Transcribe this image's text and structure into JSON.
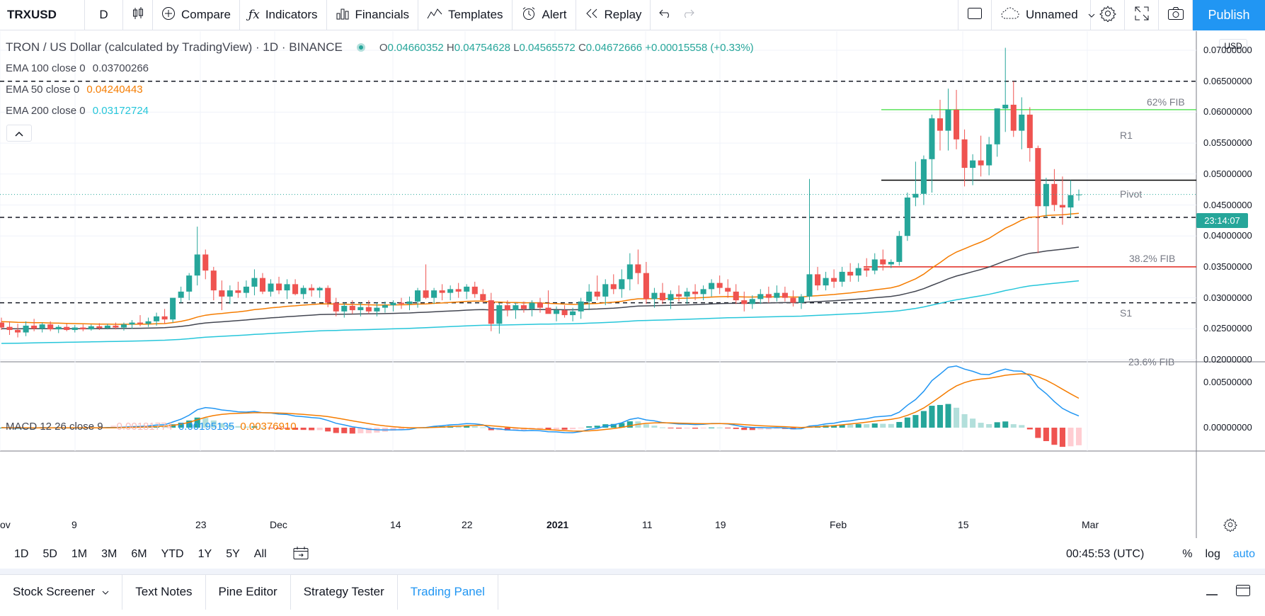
{
  "toolbar": {
    "symbol": "TRXUSD",
    "interval": "D",
    "compare": "Compare",
    "indicators": "Indicators",
    "financials": "Financials",
    "templates": "Templates",
    "alert": "Alert",
    "replay": "Replay",
    "layout_name": "Unnamed",
    "publish": "Publish"
  },
  "legend": {
    "title": "TRON / US Dollar (calculated by TradingView) · 1D · BINANCE",
    "o": "0.04660352",
    "h": "0.04754628",
    "l": "0.04565572",
    "c": "0.04672666",
    "change": "+0.00015558 (+0.33%)",
    "ema100_label": "EMA 100 close 0",
    "ema100_value": "0.03700266",
    "ema50_label": "EMA 50 close 0",
    "ema50_value": "0.04240443",
    "ema200_label": "EMA 200 close 0",
    "ema200_value": "0.03172724",
    "macd_label": "MACD 12 26 close 9",
    "macd_hist": "−0.00181774",
    "macd_line": "0.00195135",
    "macd_signal": "0.00376910"
  },
  "price_axis": {
    "currency": "USD",
    "labels": [
      "0.07000000",
      "0.06500000",
      "0.06000000",
      "0.05500000",
      "0.05000000",
      "0.04500000",
      "0.04000000",
      "0.03500000",
      "0.03000000",
      "0.02500000",
      "0.02000000"
    ],
    "macd_labels": [
      "0.00500000",
      "0.00000000"
    ],
    "countdown": "23:14:07"
  },
  "annotations": {
    "fib62": "62% FIB",
    "r1": "R1",
    "pivot": "Pivot",
    "fib382": "38.2% FIB",
    "s1": "S1",
    "fib236": "23.6% FIB"
  },
  "time_axis": [
    "ov",
    "9",
    "23",
    "Dec",
    "14",
    "22",
    "2021",
    "11",
    "19",
    "Feb",
    "15",
    "Mar"
  ],
  "ranges": [
    "1D",
    "5D",
    "1M",
    "3M",
    "6M",
    "YTD",
    "1Y",
    "5Y",
    "All"
  ],
  "clock": "00:45:53 (UTC)",
  "scale": {
    "percent": "%",
    "log": "log",
    "auto": "auto"
  },
  "tabs": [
    "Stock Screener",
    "Text Notes",
    "Pine Editor",
    "Strategy Tester",
    "Trading Panel"
  ],
  "colors": {
    "up": "#26a69a",
    "down": "#ef5350",
    "ema50": "#f57c00",
    "ema100": "#434651",
    "ema200": "#26c6da",
    "accent": "#2196f3"
  },
  "chart_data": {
    "type": "candlestick",
    "y_range": [
      0.02,
      0.07
    ],
    "candles": [
      {
        "o": 0.026,
        "h": 0.0268,
        "l": 0.0248,
        "c": 0.0252
      },
      {
        "o": 0.0253,
        "h": 0.0262,
        "l": 0.024,
        "c": 0.0248
      },
      {
        "o": 0.0248,
        "h": 0.0258,
        "l": 0.0236,
        "c": 0.0244
      },
      {
        "o": 0.0244,
        "h": 0.0262,
        "l": 0.0238,
        "c": 0.0255
      },
      {
        "o": 0.0255,
        "h": 0.0266,
        "l": 0.0246,
        "c": 0.025
      },
      {
        "o": 0.025,
        "h": 0.026,
        "l": 0.0244,
        "c": 0.0257
      },
      {
        "o": 0.0257,
        "h": 0.0262,
        "l": 0.0246,
        "c": 0.0249
      },
      {
        "o": 0.0249,
        "h": 0.0256,
        "l": 0.0243,
        "c": 0.0253
      },
      {
        "o": 0.0253,
        "h": 0.0258,
        "l": 0.0246,
        "c": 0.0248
      },
      {
        "o": 0.0248,
        "h": 0.0256,
        "l": 0.0244,
        "c": 0.0252
      },
      {
        "o": 0.0252,
        "h": 0.0257,
        "l": 0.0246,
        "c": 0.0249
      },
      {
        "o": 0.0249,
        "h": 0.0257,
        "l": 0.0247,
        "c": 0.0254
      },
      {
        "o": 0.0254,
        "h": 0.0259,
        "l": 0.0248,
        "c": 0.0251
      },
      {
        "o": 0.0251,
        "h": 0.0258,
        "l": 0.0249,
        "c": 0.0255
      },
      {
        "o": 0.0255,
        "h": 0.026,
        "l": 0.0249,
        "c": 0.0252
      },
      {
        "o": 0.0252,
        "h": 0.026,
        "l": 0.0247,
        "c": 0.0257
      },
      {
        "o": 0.0257,
        "h": 0.0264,
        "l": 0.025,
        "c": 0.026
      },
      {
        "o": 0.026,
        "h": 0.0272,
        "l": 0.0254,
        "c": 0.0258
      },
      {
        "o": 0.0258,
        "h": 0.0268,
        "l": 0.0253,
        "c": 0.0262
      },
      {
        "o": 0.0262,
        "h": 0.0276,
        "l": 0.0255,
        "c": 0.027
      },
      {
        "o": 0.027,
        "h": 0.0282,
        "l": 0.0258,
        "c": 0.0265
      },
      {
        "o": 0.0265,
        "h": 0.0296,
        "l": 0.026,
        "c": 0.03
      },
      {
        "o": 0.03,
        "h": 0.0318,
        "l": 0.0292,
        "c": 0.031
      },
      {
        "o": 0.031,
        "h": 0.034,
        "l": 0.0296,
        "c": 0.0336
      },
      {
        "o": 0.0336,
        "h": 0.0415,
        "l": 0.032,
        "c": 0.037
      },
      {
        "o": 0.037,
        "h": 0.0378,
        "l": 0.033,
        "c": 0.0344
      },
      {
        "o": 0.0344,
        "h": 0.035,
        "l": 0.0296,
        "c": 0.0312
      },
      {
        "o": 0.0312,
        "h": 0.0328,
        "l": 0.028,
        "c": 0.0302
      },
      {
        "o": 0.0302,
        "h": 0.032,
        "l": 0.029,
        "c": 0.0312
      },
      {
        "o": 0.0312,
        "h": 0.0326,
        "l": 0.03,
        "c": 0.0308
      },
      {
        "o": 0.0308,
        "h": 0.0328,
        "l": 0.03,
        "c": 0.0318
      },
      {
        "o": 0.0318,
        "h": 0.0346,
        "l": 0.0304,
        "c": 0.0332
      },
      {
        "o": 0.0332,
        "h": 0.034,
        "l": 0.0306,
        "c": 0.031
      },
      {
        "o": 0.031,
        "h": 0.033,
        "l": 0.0302,
        "c": 0.0323
      },
      {
        "o": 0.0323,
        "h": 0.0334,
        "l": 0.0306,
        "c": 0.0312
      },
      {
        "o": 0.0312,
        "h": 0.033,
        "l": 0.0298,
        "c": 0.0322
      },
      {
        "o": 0.0322,
        "h": 0.033,
        "l": 0.0304,
        "c": 0.0306
      },
      {
        "o": 0.0306,
        "h": 0.032,
        "l": 0.0298,
        "c": 0.0316
      },
      {
        "o": 0.0316,
        "h": 0.0322,
        "l": 0.0302,
        "c": 0.0312
      },
      {
        "o": 0.0312,
        "h": 0.0318,
        "l": 0.03,
        "c": 0.0316
      },
      {
        "o": 0.0316,
        "h": 0.032,
        "l": 0.0285,
        "c": 0.0292
      },
      {
        "o": 0.0292,
        "h": 0.03,
        "l": 0.027,
        "c": 0.0278
      },
      {
        "o": 0.0278,
        "h": 0.0292,
        "l": 0.0268,
        "c": 0.0287
      },
      {
        "o": 0.0287,
        "h": 0.0296,
        "l": 0.0274,
        "c": 0.028
      },
      {
        "o": 0.028,
        "h": 0.0292,
        "l": 0.027,
        "c": 0.0285
      },
      {
        "o": 0.0285,
        "h": 0.0296,
        "l": 0.0274,
        "c": 0.0278
      },
      {
        "o": 0.0278,
        "h": 0.0292,
        "l": 0.027,
        "c": 0.0284
      },
      {
        "o": 0.0284,
        "h": 0.0294,
        "l": 0.0276,
        "c": 0.0288
      },
      {
        "o": 0.0288,
        "h": 0.0296,
        "l": 0.0278,
        "c": 0.0292
      },
      {
        "o": 0.0292,
        "h": 0.03,
        "l": 0.0282,
        "c": 0.029
      },
      {
        "o": 0.029,
        "h": 0.0302,
        "l": 0.028,
        "c": 0.0294
      },
      {
        "o": 0.0294,
        "h": 0.0316,
        "l": 0.0284,
        "c": 0.0312
      },
      {
        "o": 0.0312,
        "h": 0.0354,
        "l": 0.0298,
        "c": 0.03
      },
      {
        "o": 0.03,
        "h": 0.0316,
        "l": 0.029,
        "c": 0.0312
      },
      {
        "o": 0.0312,
        "h": 0.0322,
        "l": 0.0296,
        "c": 0.0308
      },
      {
        "o": 0.0308,
        "h": 0.032,
        "l": 0.0296,
        "c": 0.0314
      },
      {
        "o": 0.0314,
        "h": 0.0324,
        "l": 0.03,
        "c": 0.031
      },
      {
        "o": 0.031,
        "h": 0.0322,
        "l": 0.0298,
        "c": 0.0318
      },
      {
        "o": 0.0318,
        "h": 0.0326,
        "l": 0.03,
        "c": 0.0306
      },
      {
        "o": 0.0306,
        "h": 0.0314,
        "l": 0.0292,
        "c": 0.0296
      },
      {
        "o": 0.0296,
        "h": 0.0308,
        "l": 0.0246,
        "c": 0.0258
      },
      {
        "o": 0.0258,
        "h": 0.0292,
        "l": 0.0242,
        "c": 0.0288
      },
      {
        "o": 0.0288,
        "h": 0.0296,
        "l": 0.027,
        "c": 0.028
      },
      {
        "o": 0.028,
        "h": 0.0292,
        "l": 0.0266,
        "c": 0.0288
      },
      {
        "o": 0.0288,
        "h": 0.0294,
        "l": 0.0276,
        "c": 0.0282
      },
      {
        "o": 0.0282,
        "h": 0.0296,
        "l": 0.027,
        "c": 0.0292
      },
      {
        "o": 0.0292,
        "h": 0.03,
        "l": 0.0276,
        "c": 0.0284
      },
      {
        "o": 0.0284,
        "h": 0.0312,
        "l": 0.0278,
        "c": 0.0274
      },
      {
        "o": 0.0274,
        "h": 0.0286,
        "l": 0.0262,
        "c": 0.028
      },
      {
        "o": 0.028,
        "h": 0.0288,
        "l": 0.0268,
        "c": 0.0272
      },
      {
        "o": 0.0272,
        "h": 0.0284,
        "l": 0.0262,
        "c": 0.0278
      },
      {
        "o": 0.0278,
        "h": 0.03,
        "l": 0.0266,
        "c": 0.0294
      },
      {
        "o": 0.0294,
        "h": 0.0322,
        "l": 0.028,
        "c": 0.031
      },
      {
        "o": 0.031,
        "h": 0.0336,
        "l": 0.0296,
        "c": 0.0302
      },
      {
        "o": 0.0302,
        "h": 0.033,
        "l": 0.0288,
        "c": 0.0322
      },
      {
        "o": 0.0322,
        "h": 0.0338,
        "l": 0.0306,
        "c": 0.0314
      },
      {
        "o": 0.0314,
        "h": 0.0346,
        "l": 0.03,
        "c": 0.033
      },
      {
        "o": 0.033,
        "h": 0.0372,
        "l": 0.0312,
        "c": 0.0354
      },
      {
        "o": 0.0354,
        "h": 0.0378,
        "l": 0.0322,
        "c": 0.034
      },
      {
        "o": 0.034,
        "h": 0.0358,
        "l": 0.029,
        "c": 0.0298
      },
      {
        "o": 0.0298,
        "h": 0.0316,
        "l": 0.0284,
        "c": 0.0308
      },
      {
        "o": 0.0308,
        "h": 0.0324,
        "l": 0.029,
        "c": 0.0296
      },
      {
        "o": 0.0296,
        "h": 0.0312,
        "l": 0.0282,
        "c": 0.0306
      },
      {
        "o": 0.0306,
        "h": 0.032,
        "l": 0.0294,
        "c": 0.0302
      },
      {
        "o": 0.0302,
        "h": 0.0316,
        "l": 0.029,
        "c": 0.031
      },
      {
        "o": 0.031,
        "h": 0.0322,
        "l": 0.0296,
        "c": 0.0306
      },
      {
        "o": 0.0306,
        "h": 0.032,
        "l": 0.0296,
        "c": 0.0314
      },
      {
        "o": 0.0314,
        "h": 0.033,
        "l": 0.0302,
        "c": 0.0324
      },
      {
        "o": 0.0324,
        "h": 0.0336,
        "l": 0.0306,
        "c": 0.0316
      },
      {
        "o": 0.0316,
        "h": 0.033,
        "l": 0.03,
        "c": 0.031
      },
      {
        "o": 0.031,
        "h": 0.0322,
        "l": 0.029,
        "c": 0.0296
      },
      {
        "o": 0.0296,
        "h": 0.031,
        "l": 0.0278,
        "c": 0.029
      },
      {
        "o": 0.029,
        "h": 0.0304,
        "l": 0.0282,
        "c": 0.0298
      },
      {
        "o": 0.0298,
        "h": 0.0314,
        "l": 0.029,
        "c": 0.0306
      },
      {
        "o": 0.0306,
        "h": 0.0318,
        "l": 0.0292,
        "c": 0.03
      },
      {
        "o": 0.03,
        "h": 0.032,
        "l": 0.0294,
        "c": 0.0308
      },
      {
        "o": 0.0308,
        "h": 0.0318,
        "l": 0.0294,
        "c": 0.03
      },
      {
        "o": 0.03,
        "h": 0.0312,
        "l": 0.0286,
        "c": 0.0292
      },
      {
        "o": 0.0292,
        "h": 0.0306,
        "l": 0.0282,
        "c": 0.0302
      },
      {
        "o": 0.0302,
        "h": 0.0492,
        "l": 0.0296,
        "c": 0.0338
      },
      {
        "o": 0.0338,
        "h": 0.035,
        "l": 0.0312,
        "c": 0.032
      },
      {
        "o": 0.032,
        "h": 0.0342,
        "l": 0.0312,
        "c": 0.0332
      },
      {
        "o": 0.0332,
        "h": 0.0346,
        "l": 0.0316,
        "c": 0.0326
      },
      {
        "o": 0.0326,
        "h": 0.035,
        "l": 0.0318,
        "c": 0.0342
      },
      {
        "o": 0.0342,
        "h": 0.0356,
        "l": 0.0326,
        "c": 0.0336
      },
      {
        "o": 0.0336,
        "h": 0.0356,
        "l": 0.0326,
        "c": 0.0348
      },
      {
        "o": 0.0348,
        "h": 0.0364,
        "l": 0.0334,
        "c": 0.0344
      },
      {
        "o": 0.0344,
        "h": 0.0372,
        "l": 0.0338,
        "c": 0.0362
      },
      {
        "o": 0.0362,
        "h": 0.0378,
        "l": 0.0344,
        "c": 0.0354
      },
      {
        "o": 0.0354,
        "h": 0.0362,
        "l": 0.0348,
        "c": 0.0358
      },
      {
        "o": 0.0358,
        "h": 0.0408,
        "l": 0.0352,
        "c": 0.04
      },
      {
        "o": 0.04,
        "h": 0.047,
        "l": 0.0392,
        "c": 0.0462
      },
      {
        "o": 0.0462,
        "h": 0.052,
        "l": 0.0448,
        "c": 0.0468
      },
      {
        "o": 0.0468,
        "h": 0.053,
        "l": 0.045,
        "c": 0.0524
      },
      {
        "o": 0.0524,
        "h": 0.0596,
        "l": 0.047,
        "c": 0.059
      },
      {
        "o": 0.059,
        "h": 0.062,
        "l": 0.0538,
        "c": 0.057
      },
      {
        "o": 0.057,
        "h": 0.0638,
        "l": 0.0538,
        "c": 0.0604
      },
      {
        "o": 0.0604,
        "h": 0.0636,
        "l": 0.054,
        "c": 0.0556
      },
      {
        "o": 0.0556,
        "h": 0.0572,
        "l": 0.048,
        "c": 0.051
      },
      {
        "o": 0.051,
        "h": 0.0532,
        "l": 0.0482,
        "c": 0.0522
      },
      {
        "o": 0.0522,
        "h": 0.0562,
        "l": 0.0496,
        "c": 0.0514
      },
      {
        "o": 0.0514,
        "h": 0.056,
        "l": 0.0498,
        "c": 0.0548
      },
      {
        "o": 0.0548,
        "h": 0.0606,
        "l": 0.0528,
        "c": 0.0606
      },
      {
        "o": 0.0606,
        "h": 0.0704,
        "l": 0.0568,
        "c": 0.0612
      },
      {
        "o": 0.0612,
        "h": 0.065,
        "l": 0.056,
        "c": 0.057
      },
      {
        "o": 0.057,
        "h": 0.0624,
        "l": 0.054,
        "c": 0.0596
      },
      {
        "o": 0.0596,
        "h": 0.0608,
        "l": 0.052,
        "c": 0.0542
      },
      {
        "o": 0.0542,
        "h": 0.0546,
        "l": 0.0372,
        "c": 0.0448
      },
      {
        "o": 0.0448,
        "h": 0.0494,
        "l": 0.043,
        "c": 0.0484
      },
      {
        "o": 0.0484,
        "h": 0.0508,
        "l": 0.044,
        "c": 0.045
      },
      {
        "o": 0.045,
        "h": 0.0496,
        "l": 0.0418,
        "c": 0.0446
      },
      {
        "o": 0.0446,
        "h": 0.049,
        "l": 0.043,
        "c": 0.0466
      },
      {
        "o": 0.0466,
        "h": 0.0475,
        "l": 0.0457,
        "c": 0.0467
      }
    ]
  }
}
